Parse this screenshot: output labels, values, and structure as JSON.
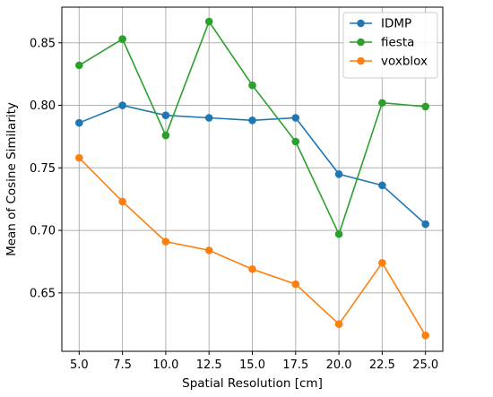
{
  "chart_data": {
    "type": "line",
    "title": "",
    "xlabel": "Spatial Resolution [cm]",
    "ylabel": "Mean of Cosine Similarity",
    "x": [
      5.0,
      7.5,
      10.0,
      12.5,
      15.0,
      17.5,
      20.0,
      22.5,
      25.0
    ],
    "x_tick_labels": [
      "5.0",
      "7.5",
      "10.0",
      "12.5",
      "15.0",
      "17.5",
      "20.0",
      "22.5",
      "25.0"
    ],
    "y_ticks": [
      0.65,
      0.7,
      0.75,
      0.8,
      0.85
    ],
    "y_tick_labels": [
      "0.65",
      "0.70",
      "0.75",
      "0.80",
      "0.85"
    ],
    "xlim": [
      4.0,
      26.0
    ],
    "ylim": [
      0.6033,
      0.8785
    ],
    "grid": true,
    "legend_position": "top-right",
    "series": [
      {
        "name": "IDMP",
        "color": "#1f77b4",
        "values": [
          0.786,
          0.8,
          0.792,
          0.79,
          0.788,
          0.79,
          0.745,
          0.736,
          0.705
        ]
      },
      {
        "name": "fiesta",
        "color": "#2ca02c",
        "values": [
          0.832,
          0.853,
          0.776,
          0.867,
          0.816,
          0.771,
          0.697,
          0.802,
          0.799
        ]
      },
      {
        "name": "voxblox",
        "color": "#ff7f0e",
        "values": [
          0.758,
          0.723,
          0.691,
          0.684,
          0.669,
          0.657,
          0.625,
          0.674,
          0.616
        ]
      }
    ]
  }
}
